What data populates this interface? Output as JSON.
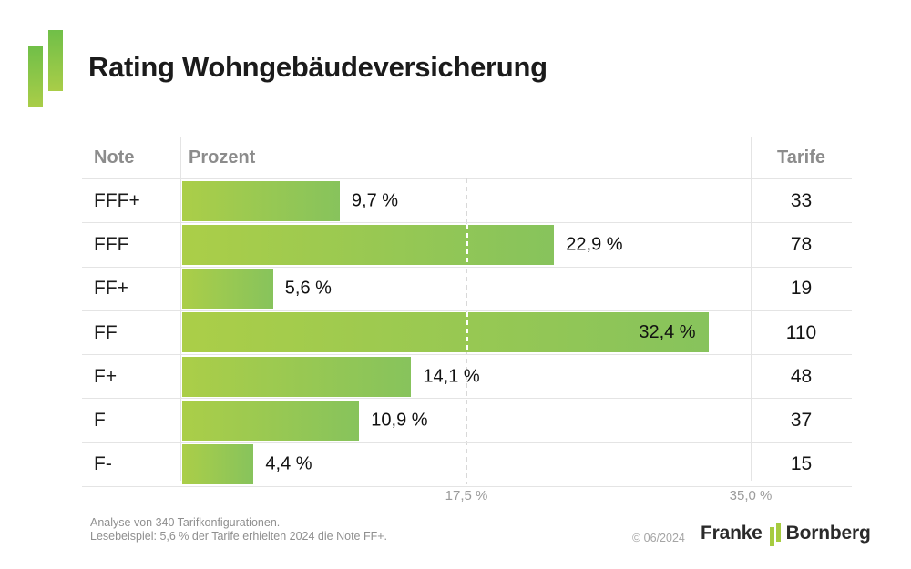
{
  "header": {
    "title": "Rating Wohngebäudeversicherung"
  },
  "table": {
    "columns": {
      "note": "Note",
      "prozent": "Prozent",
      "tarife": "Tarife"
    },
    "rows": [
      {
        "note": "FFF+",
        "value": 9.7,
        "percent_label": "9,7 %",
        "tarife": "33",
        "label_inside": false
      },
      {
        "note": "FFF",
        "value": 22.9,
        "percent_label": "22,9 %",
        "tarife": "78",
        "label_inside": false
      },
      {
        "note": "FF+",
        "value": 5.6,
        "percent_label": "5,6 %",
        "tarife": "19",
        "label_inside": false
      },
      {
        "note": "FF",
        "value": 32.4,
        "percent_label": "32,4 %",
        "tarife": "110",
        "label_inside": true
      },
      {
        "note": "F+",
        "value": 14.1,
        "percent_label": "14,1 %",
        "tarife": "48",
        "label_inside": false
      },
      {
        "note": "F",
        "value": 10.9,
        "percent_label": "10,9 %",
        "tarife": "37",
        "label_inside": false
      },
      {
        "note": "F-",
        "value": 4.4,
        "percent_label": "4,4 %",
        "tarife": "15",
        "label_inside": false
      }
    ],
    "axis_ticks": [
      {
        "value": 17.5,
        "label": "17,5 %"
      },
      {
        "value": 35.0,
        "label": "35,0 %"
      }
    ]
  },
  "footer": {
    "note_line1": "Analyse von 340 Tarifkonfigurationen.",
    "note_line2": "Lesebeispiel: 5,6 % der Tarife erhielten 2024 die Note FF+.",
    "copyright": "© 06/2024",
    "brand_name1": "Franke",
    "brand_name2": "Bornberg"
  },
  "colors": {
    "bar_start": "#abce48",
    "bar_end": "#87c35c",
    "logo_top": "#70bf48",
    "logo_bottom": "#a9cd48",
    "brand_green": "#a6cb40",
    "grid_line": "#e4e4e4",
    "dash_grey": "#d8d8d8",
    "header_text": "#8c8c8c",
    "axis_text": "#9b9b9b",
    "footer_text": "#8f8f8f",
    "title_text": "#1b1b1b"
  },
  "chart_data": {
    "type": "bar",
    "orientation": "horizontal",
    "title": "Rating Wohngebäudeversicherung",
    "categories": [
      "FFF+",
      "FFF",
      "FF+",
      "FF",
      "F+",
      "F",
      "F-"
    ],
    "series": [
      {
        "name": "Prozent",
        "values": [
          9.7,
          22.9,
          5.6,
          32.4,
          14.1,
          10.9,
          4.4
        ]
      },
      {
        "name": "Tarife",
        "values": [
          33,
          78,
          19,
          110,
          48,
          37,
          15
        ]
      }
    ],
    "value_labels": [
      "9,7 %",
      "22,9 %",
      "5,6 %",
      "32,4 %",
      "14,1 %",
      "10,9 %",
      "4,4 %"
    ],
    "xlabel": "Prozent",
    "ylabel": "Note",
    "xlim": [
      0,
      35
    ],
    "ticks": [
      17.5,
      35.0
    ],
    "tick_labels": [
      "17,5 %",
      "35,0 %"
    ],
    "grid": "dashed-at-17.5",
    "legend": "none"
  }
}
